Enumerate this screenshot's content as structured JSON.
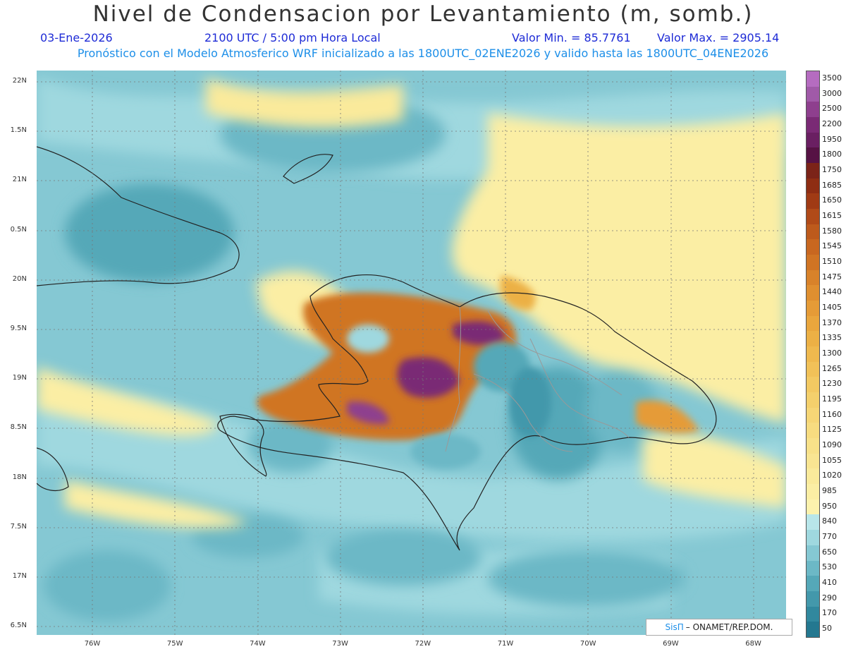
{
  "header": {
    "title": "Nivel de Condensacion por Levantamiento (m, somb.)",
    "date": "03-Ene-2026",
    "time": "2100 UTC / 5:00 pm Hora Local",
    "min_label": "Valor Min. = 85.7761",
    "max_label": "Valor Max. = 2905.14",
    "model_line": "Pronóstico con el Modelo Atmosferico WRF inicializado a las 1800UTC_02ENE2026 y valido hasta las  1800UTC_04ENE2026"
  },
  "map": {
    "lat_labels": [
      "22N",
      "1.5N",
      "21N",
      "0.5N",
      "20N",
      "9.5N",
      "19N",
      "8.5N",
      "18N",
      "7.5N",
      "17N",
      "6.5N"
    ],
    "lon_labels": [
      "76W",
      "75W",
      "74W",
      "73W",
      "72W",
      "71W",
      "70W",
      "69W",
      "68W"
    ],
    "lat_range": [
      16.5,
      22.1
    ],
    "lon_range": [
      -76.7,
      -67.6
    ]
  },
  "colorbar": {
    "levels": [
      "3500",
      "3000",
      "2500",
      "2200",
      "1950",
      "1800",
      "1750",
      "1685",
      "1650",
      "1615",
      "1580",
      "1545",
      "1510",
      "1475",
      "1440",
      "1405",
      "1370",
      "1335",
      "1300",
      "1265",
      "1230",
      "1195",
      "1160",
      "1125",
      "1090",
      "1055",
      "1020",
      "985",
      "950",
      "840",
      "770",
      "650",
      "530",
      "410",
      "290",
      "170",
      "50"
    ],
    "colors": [
      "#b56cc0",
      "#a05aa8",
      "#8e3f8e",
      "#7a2a75",
      "#6a1f62",
      "#561244",
      "#7b2318",
      "#8e2d13",
      "#a03a14",
      "#b04a18",
      "#bd5a1c",
      "#c86720",
      "#d07424",
      "#d8822a",
      "#df8f30",
      "#e59b37",
      "#e9a63d",
      "#ecb045",
      "#efb94e",
      "#f1c158",
      "#f3c962",
      "#f4d06c",
      "#f6d676",
      "#f7dc80",
      "#f8e189",
      "#f9e592",
      "#faea9b",
      "#fbeea4",
      "#fcf2ad",
      "#b8e6ea",
      "#9fd8df",
      "#85c8d3",
      "#6cb8c6",
      "#55a8b8",
      "#4398ab",
      "#31889e",
      "#247890"
    ]
  },
  "credit": {
    "brand": "SisΠ",
    "org": "– ONAMET/REP.DOM."
  }
}
